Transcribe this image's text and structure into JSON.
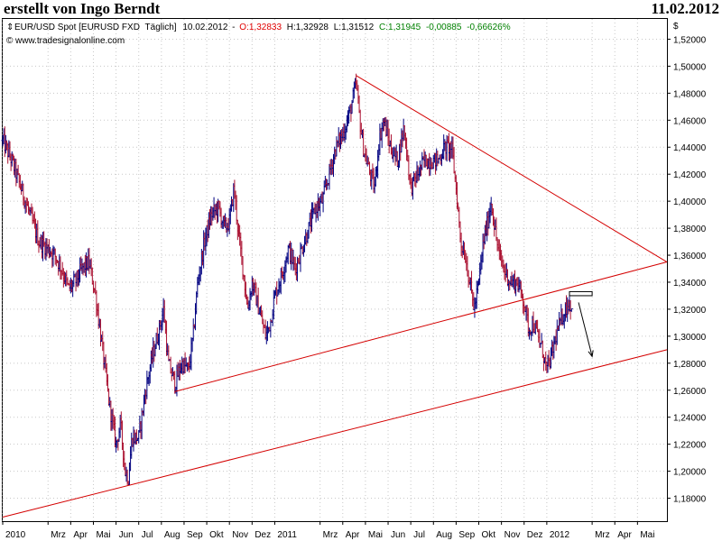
{
  "header": {
    "title": "erstellt von Ingo Berndt",
    "date": "11.02.2012"
  },
  "legend": {
    "instrument": "EUR/USD Spot [EURUSD FXD",
    "interval": "Täglich]",
    "last_date": "10.02.2012",
    "open": "O:1,32833",
    "high": "H:1,32928",
    "low": "L:1,31512",
    "close": "C:1,31945",
    "change": "-0,00885",
    "change_pct": "-0,66626%",
    "website": "www.tradesignalonline.com"
  },
  "colors": {
    "up_bar": "#000080",
    "down_bar": "#aa1030",
    "trendline": "#d40000",
    "grid": "#c8c8c8",
    "arrow": "#000000",
    "close_green": "#008000",
    "open_red": "#e00000"
  },
  "chart_data": {
    "type": "ohlc",
    "instrument": "EUR/USD Spot",
    "y_axis_unit": "$",
    "ylim": [
      1.163,
      1.535
    ],
    "y_ticks": [
      "1,18000",
      "1,20000",
      "1,22000",
      "1,24000",
      "1,26000",
      "1,28000",
      "1,30000",
      "1,32000",
      "1,34000",
      "1,36000",
      "1,38000",
      "1,40000",
      "1,42000",
      "1,44000",
      "1,46000",
      "1,48000",
      "1,50000",
      "1,52000"
    ],
    "y_tick_values": [
      1.18,
      1.2,
      1.22,
      1.24,
      1.26,
      1.28,
      1.3,
      1.32,
      1.34,
      1.36,
      1.38,
      1.4,
      1.42,
      1.44,
      1.46,
      1.48,
      1.5,
      1.52
    ],
    "x_ticks": [
      {
        "label": "2010",
        "month": 0
      },
      {
        "label": "Mrz",
        "month": 2
      },
      {
        "label": "Apr",
        "month": 3
      },
      {
        "label": "Mai",
        "month": 4
      },
      {
        "label": "Jun",
        "month": 5
      },
      {
        "label": "Jul",
        "month": 6
      },
      {
        "label": "Aug",
        "month": 7
      },
      {
        "label": "Sep",
        "month": 8
      },
      {
        "label": "Okt",
        "month": 9
      },
      {
        "label": "Nov",
        "month": 10
      },
      {
        "label": "Dez",
        "month": 11
      },
      {
        "label": "2011",
        "month": 12
      },
      {
        "label": "Mrz",
        "month": 14
      },
      {
        "label": "Apr",
        "month": 15
      },
      {
        "label": "Mai",
        "month": 16
      },
      {
        "label": "Jun",
        "month": 17
      },
      {
        "label": "Jul",
        "month": 18
      },
      {
        "label": "Aug",
        "month": 19
      },
      {
        "label": "Sep",
        "month": 20
      },
      {
        "label": "Okt",
        "month": 21
      },
      {
        "label": "Nov",
        "month": 22
      },
      {
        "label": "Dez",
        "month": 23
      },
      {
        "label": "2012",
        "month": 24
      },
      {
        "label": "Mrz",
        "month": 26
      },
      {
        "label": "Apr",
        "month": 27
      },
      {
        "label": "Mai",
        "month": 28
      }
    ],
    "x_range_months": [
      0,
      29.3
    ],
    "price_path": [
      [
        0.0,
        1.445
      ],
      [
        0.4,
        1.43
      ],
      [
        0.8,
        1.41
      ],
      [
        1.2,
        1.39
      ],
      [
        1.6,
        1.37
      ],
      [
        2.0,
        1.365
      ],
      [
        2.3,
        1.36
      ],
      [
        2.6,
        1.35
      ],
      [
        2.9,
        1.335
      ],
      [
        3.2,
        1.34
      ],
      [
        3.5,
        1.35
      ],
      [
        3.8,
        1.355
      ],
      [
        4.1,
        1.33
      ],
      [
        4.4,
        1.29
      ],
      [
        4.7,
        1.25
      ],
      [
        5.0,
        1.22
      ],
      [
        5.2,
        1.235
      ],
      [
        5.4,
        1.2
      ],
      [
        5.55,
        1.195
      ],
      [
        5.7,
        1.225
      ],
      [
        6.0,
        1.225
      ],
      [
        6.3,
        1.26
      ],
      [
        6.6,
        1.285
      ],
      [
        6.9,
        1.305
      ],
      [
        7.1,
        1.32
      ],
      [
        7.3,
        1.28
      ],
      [
        7.6,
        1.265
      ],
      [
        7.9,
        1.28
      ],
      [
        8.2,
        1.275
      ],
      [
        8.4,
        1.3
      ],
      [
        8.6,
        1.34
      ],
      [
        8.9,
        1.37
      ],
      [
        9.2,
        1.39
      ],
      [
        9.5,
        1.395
      ],
      [
        9.8,
        1.38
      ],
      [
        10.0,
        1.385
      ],
      [
        10.2,
        1.41
      ],
      [
        10.4,
        1.375
      ],
      [
        10.6,
        1.35
      ],
      [
        10.8,
        1.32
      ],
      [
        11.0,
        1.34
      ],
      [
        11.3,
        1.32
      ],
      [
        11.6,
        1.3
      ],
      [
        11.8,
        1.31
      ],
      [
        12.0,
        1.33
      ],
      [
        12.3,
        1.345
      ],
      [
        12.6,
        1.365
      ],
      [
        12.9,
        1.35
      ],
      [
        13.2,
        1.365
      ],
      [
        13.5,
        1.38
      ],
      [
        13.8,
        1.395
      ],
      [
        14.1,
        1.4
      ],
      [
        14.4,
        1.42
      ],
      [
        14.7,
        1.44
      ],
      [
        15.0,
        1.45
      ],
      [
        15.3,
        1.465
      ],
      [
        15.5,
        1.48
      ],
      [
        15.6,
        1.487
      ],
      [
        15.75,
        1.46
      ],
      [
        15.9,
        1.44
      ],
      [
        16.2,
        1.42
      ],
      [
        16.4,
        1.41
      ],
      [
        16.6,
        1.445
      ],
      [
        16.8,
        1.46
      ],
      [
        17.1,
        1.44
      ],
      [
        17.4,
        1.43
      ],
      [
        17.7,
        1.455
      ],
      [
        18.0,
        1.41
      ],
      [
        18.3,
        1.42
      ],
      [
        18.6,
        1.43
      ],
      [
        18.9,
        1.43
      ],
      [
        19.2,
        1.43
      ],
      [
        19.5,
        1.44
      ],
      [
        19.8,
        1.44
      ],
      [
        20.0,
        1.41
      ],
      [
        20.2,
        1.37
      ],
      [
        20.4,
        1.36
      ],
      [
        20.6,
        1.34
      ],
      [
        20.8,
        1.32
      ],
      [
        21.0,
        1.34
      ],
      [
        21.2,
        1.37
      ],
      [
        21.4,
        1.385
      ],
      [
        21.55,
        1.4
      ],
      [
        21.7,
        1.38
      ],
      [
        21.9,
        1.36
      ],
      [
        22.1,
        1.35
      ],
      [
        22.4,
        1.34
      ],
      [
        22.7,
        1.34
      ],
      [
        23.0,
        1.325
      ],
      [
        23.2,
        1.305
      ],
      [
        23.4,
        1.31
      ],
      [
        23.6,
        1.3
      ],
      [
        23.8,
        1.29
      ],
      [
        24.0,
        1.275
      ],
      [
        24.2,
        1.285
      ],
      [
        24.4,
        1.3
      ],
      [
        24.6,
        1.31
      ],
      [
        24.8,
        1.32
      ],
      [
        25.0,
        1.325
      ],
      [
        25.1,
        1.322
      ]
    ],
    "series": [
      {
        "name": "EUR/USD",
        "type": "ohlc",
        "note": "daily OHLC bars approximating the path above"
      }
    ],
    "annotations": [
      {
        "type": "trendline",
        "from": {
          "month": 15.6,
          "price": 1.493
        },
        "to": {
          "month": 29.3,
          "price": 1.355
        }
      },
      {
        "type": "trendline",
        "from": {
          "month": 7.6,
          "price": 1.259
        },
        "to": {
          "month": 29.3,
          "price": 1.355
        }
      },
      {
        "type": "trendline",
        "from": {
          "month": 0.0,
          "price": 1.166
        },
        "to": {
          "month": 29.3,
          "price": 1.29
        }
      },
      {
        "type": "box",
        "from": {
          "month": 25.0,
          "price": 1.333
        },
        "to": {
          "month": 26.0,
          "price": 1.33
        }
      },
      {
        "type": "arrow",
        "from": {
          "month": 25.4,
          "price": 1.325
        },
        "to": {
          "month": 26.0,
          "price": 1.285
        }
      }
    ]
  }
}
